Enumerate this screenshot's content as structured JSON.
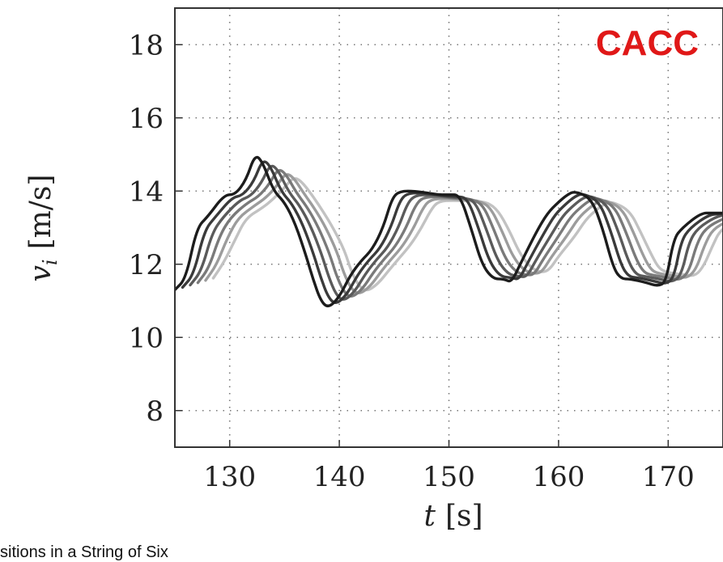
{
  "chart_data": {
    "type": "line",
    "annotation": "CACC",
    "annotation_color": "#e01818",
    "xlabel_var": "t",
    "xlabel_unit": "[s]",
    "ylabel_var": "v",
    "ylabel_sub": "i",
    "ylabel_unit": "[m/s]",
    "xlim": [
      125,
      175
    ],
    "ylim": [
      7,
      19
    ],
    "xticks": [
      "130",
      "140",
      "150",
      "160",
      "170"
    ],
    "yticks": [
      "8",
      "10",
      "12",
      "14",
      "16",
      "18"
    ],
    "xtick_values": [
      130,
      140,
      150,
      160,
      170
    ],
    "ytick_values": [
      8,
      10,
      12,
      14,
      16,
      18
    ],
    "grid": true,
    "series_colors": [
      "#1c1c1c",
      "#3a3a3a",
      "#5a5a5a",
      "#7a7a7a",
      "#9c9c9c",
      "#c2c2c2"
    ],
    "series_lag_s": [
      0,
      0.7,
      1.4,
      2.1,
      2.8,
      3.5
    ],
    "series": [
      {
        "x": [
          125,
          126,
          127,
          128,
          129.5,
          130.5,
          131.5,
          132.3,
          133,
          134,
          135,
          136,
          137,
          137.6,
          138.3,
          139,
          140,
          141,
          142,
          143,
          144,
          144.8,
          145.5,
          147,
          149,
          150,
          151,
          152,
          153,
          154,
          155,
          155.7,
          156.5,
          158,
          159,
          160,
          160.8,
          161.5,
          163,
          164,
          165,
          165.7,
          166.5,
          168,
          169,
          169.8,
          170.5,
          171.3,
          173,
          174,
          175
        ],
        "y": [
          11.3,
          11.6,
          13.0,
          13.3,
          13.9,
          13.9,
          14.3,
          15.0,
          14.8,
          14.0,
          13.7,
          13.1,
          12.2,
          11.6,
          11.0,
          10.8,
          11.1,
          11.7,
          12.1,
          12.4,
          13.0,
          13.8,
          14.0,
          14.0,
          13.9,
          13.9,
          13.9,
          13.0,
          12.0,
          11.6,
          11.6,
          11.5,
          12.0,
          12.9,
          13.4,
          13.7,
          13.9,
          14.0,
          13.8,
          13.0,
          11.9,
          11.6,
          11.6,
          11.5,
          11.4,
          11.5,
          12.7,
          13.0,
          13.4,
          13.4,
          13.4
        ]
      }
    ]
  },
  "caption": "sitions in a String of Six"
}
